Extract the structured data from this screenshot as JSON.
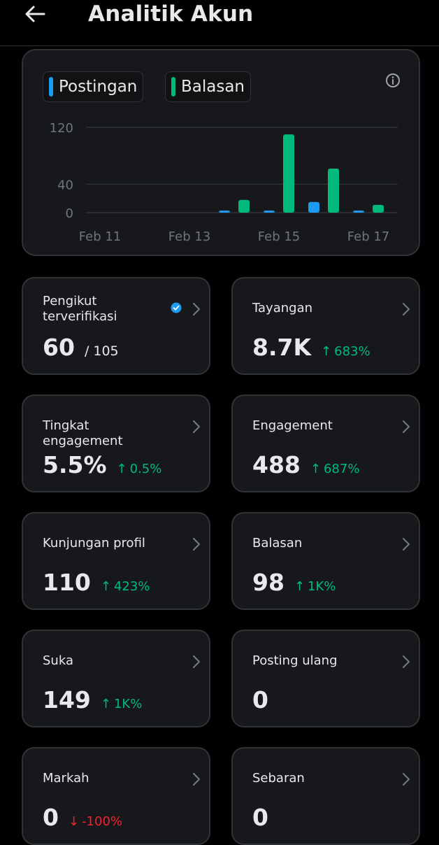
{
  "header": {
    "title": "Analitik Akun"
  },
  "colors": {
    "posts": "#1d9bf0",
    "replies": "#00ba7c",
    "up": "#00ba7c",
    "down": "#f4212e"
  },
  "chart_data": {
    "type": "bar",
    "categories": [
      "Feb 11",
      "Feb 12",
      "Feb 13",
      "Feb 14",
      "Feb 15",
      "Feb 16",
      "Feb 17"
    ],
    "x_tick_labels": [
      "Feb 11",
      "Feb 13",
      "Feb 15",
      "Feb 17"
    ],
    "series": [
      {
        "name": "Postingan",
        "values": [
          0,
          0,
          0,
          2,
          2,
          15,
          2
        ]
      },
      {
        "name": "Balasan",
        "values": [
          0,
          0,
          0,
          18,
          110,
          62,
          11
        ]
      }
    ],
    "y_ticks": [
      0,
      40,
      120
    ],
    "ylim": [
      0,
      120
    ],
    "grid": true,
    "legend_position": "top-left"
  },
  "cards": [
    {
      "name": "verified-followers",
      "title": "Pengikut terverifikasi",
      "value": "60",
      "sub": "/ 105",
      "verified": true
    },
    {
      "name": "impressions",
      "title": "Tayangan",
      "value": "8.7K",
      "delta": "683%",
      "dir": "up"
    },
    {
      "name": "engagement-rate",
      "title": "Tingkat engagement",
      "value": "5.5%",
      "delta": "0.5%",
      "dir": "up"
    },
    {
      "name": "engagement",
      "title": "Engagement",
      "value": "488",
      "delta": "687%",
      "dir": "up"
    },
    {
      "name": "profile-visits",
      "title": "Kunjungan profil",
      "value": "110",
      "delta": "423%",
      "dir": "up"
    },
    {
      "name": "replies",
      "title": "Balasan",
      "value": "98",
      "delta": "1K%",
      "dir": "up"
    },
    {
      "name": "likes",
      "title": "Suka",
      "value": "149",
      "delta": "1K%",
      "dir": "up"
    },
    {
      "name": "reposts",
      "title": "Posting ulang",
      "value": "0"
    },
    {
      "name": "bookmarks",
      "title": "Markah",
      "value": "0",
      "delta": "-100%",
      "dir": "down"
    },
    {
      "name": "shares",
      "title": "Sebaran",
      "value": "0"
    }
  ]
}
